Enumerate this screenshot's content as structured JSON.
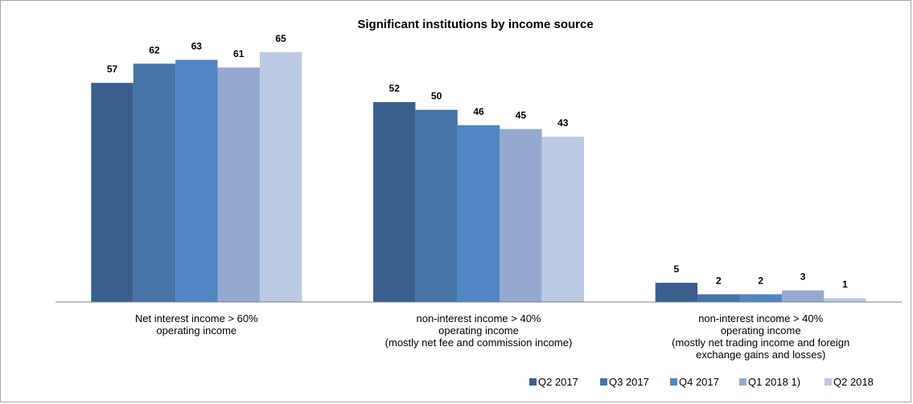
{
  "chart_data": {
    "type": "bar",
    "title": "Significant institutions by income source",
    "categories": [
      [
        "Net interest income > 60%",
        "operating income"
      ],
      [
        "non-interest income > 40%",
        "operating income",
        "(mostly net fee and commission income)"
      ],
      [
        "non-interest income > 40%",
        "operating income",
        "(mostly net trading income and foreign",
        "exchange gains and losses)"
      ]
    ],
    "series": [
      {
        "name": "Q2 2017",
        "color": "#3a5f8e",
        "values": [
          57,
          52,
          5
        ]
      },
      {
        "name": "Q3 2017",
        "color": "#4674a8",
        "values": [
          62,
          50,
          2
        ]
      },
      {
        "name": "Q4 2017",
        "color": "#4f86c3",
        "values": [
          63,
          46,
          2
        ]
      },
      {
        "name": "Q1 2018 1)",
        "color": "#95a9d0",
        "values": [
          61,
          45,
          3
        ]
      },
      {
        "name": "Q2 2018",
        "color": "#bcc9e2",
        "values": [
          65,
          43,
          1
        ]
      }
    ],
    "ylim": [
      0,
      70
    ],
    "grid": false,
    "legend": "bottom-right",
    "data_labels": true
  }
}
